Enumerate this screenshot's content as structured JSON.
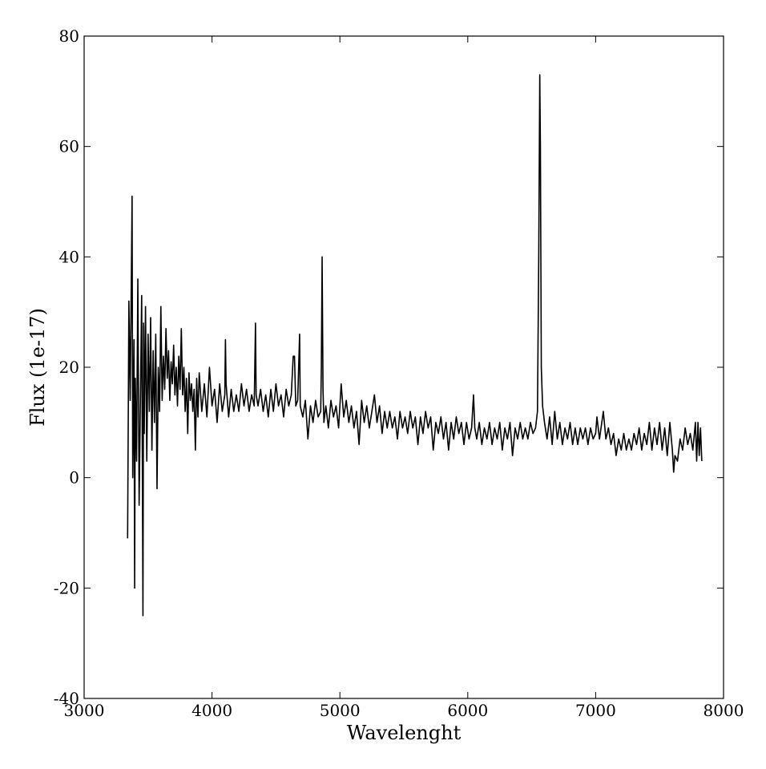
{
  "chart_data": {
    "type": "line",
    "x_label": "Wavelenght",
    "y_label": "Flux (1e-17)",
    "x": [
      3340,
      3350,
      3360,
      3370,
      3375,
      3380,
      3390,
      3395,
      3400,
      3410,
      3420,
      3430,
      3440,
      3450,
      3460,
      3465,
      3470,
      3480,
      3490,
      3500,
      3510,
      3520,
      3530,
      3540,
      3550,
      3560,
      3570,
      3580,
      3590,
      3600,
      3610,
      3620,
      3630,
      3640,
      3650,
      3660,
      3670,
      3680,
      3690,
      3700,
      3710,
      3720,
      3730,
      3740,
      3750,
      3760,
      3770,
      3780,
      3790,
      3800,
      3810,
      3820,
      3830,
      3840,
      3850,
      3860,
      3870,
      3880,
      3890,
      3900,
      3920,
      3940,
      3960,
      3980,
      4000,
      4020,
      4040,
      4060,
      4080,
      4100,
      4105,
      4110,
      4130,
      4150,
      4170,
      4190,
      4210,
      4230,
      4250,
      4270,
      4290,
      4310,
      4330,
      4340,
      4345,
      4360,
      4380,
      4400,
      4420,
      4440,
      4460,
      4480,
      4500,
      4520,
      4540,
      4560,
      4580,
      4600,
      4620,
      4635,
      4645,
      4655,
      4670,
      4685,
      4690,
      4710,
      4730,
      4750,
      4770,
      4790,
      4810,
      4830,
      4850,
      4855,
      4861,
      4868,
      4875,
      4890,
      4910,
      4930,
      4950,
      4970,
      4990,
      5010,
      5030,
      5050,
      5070,
      5090,
      5110,
      5130,
      5150,
      5170,
      5190,
      5210,
      5230,
      5250,
      5270,
      5290,
      5310,
      5330,
      5350,
      5370,
      5390,
      5410,
      5430,
      5450,
      5470,
      5490,
      5510,
      5530,
      5550,
      5570,
      5590,
      5610,
      5630,
      5650,
      5670,
      5690,
      5710,
      5730,
      5750,
      5770,
      5790,
      5810,
      5830,
      5850,
      5870,
      5890,
      5910,
      5930,
      5950,
      5970,
      5990,
      6010,
      6030,
      6045,
      6055,
      6070,
      6090,
      6110,
      6130,
      6150,
      6170,
      6190,
      6210,
      6230,
      6250,
      6270,
      6290,
      6310,
      6330,
      6350,
      6370,
      6390,
      6410,
      6430,
      6450,
      6470,
      6490,
      6510,
      6530,
      6545,
      6555,
      6563,
      6568,
      6575,
      6585,
      6600,
      6620,
      6640,
      6660,
      6680,
      6700,
      6720,
      6740,
      6760,
      6780,
      6800,
      6820,
      6840,
      6860,
      6880,
      6900,
      6920,
      6940,
      6960,
      6980,
      7000,
      7010,
      7030,
      7060,
      7080,
      7100,
      7120,
      7140,
      7160,
      7180,
      7200,
      7220,
      7240,
      7260,
      7280,
      7300,
      7320,
      7340,
      7360,
      7380,
      7400,
      7420,
      7440,
      7460,
      7480,
      7500,
      7520,
      7540,
      7560,
      7580,
      7600,
      7610,
      7620,
      7640,
      7660,
      7680,
      7700,
      7720,
      7740,
      7760,
      7780,
      7790,
      7800,
      7810,
      7820,
      7830
    ],
    "values": [
      -11,
      32,
      14,
      38,
      51,
      0,
      25,
      -20,
      18,
      3,
      36,
      -5,
      14,
      33,
      -25,
      28,
      8,
      31,
      3,
      26,
      12,
      29,
      5,
      23,
      10,
      26,
      -2,
      20,
      12,
      31,
      14,
      22,
      16,
      27,
      18,
      23,
      14,
      21,
      17,
      24,
      15,
      20,
      13,
      22,
      16,
      27,
      15,
      20,
      12,
      18,
      8,
      19,
      14,
      17,
      12,
      16,
      5,
      18,
      11,
      19,
      12,
      17,
      11,
      20,
      13,
      16,
      10,
      17,
      12,
      15,
      25,
      17,
      11,
      16,
      12,
      15,
      12,
      17,
      13,
      16,
      12,
      15,
      13,
      28,
      15,
      13,
      16,
      12,
      15,
      11,
      16,
      12,
      17,
      13,
      15,
      11,
      16,
      13,
      15,
      22,
      22,
      13,
      14,
      26,
      13,
      11,
      14,
      7,
      13,
      10,
      14,
      11,
      12,
      20,
      40,
      16,
      10,
      13,
      9,
      14,
      11,
      13,
      9,
      17,
      11,
      14,
      10,
      13,
      9,
      12,
      6,
      14,
      10,
      13,
      9,
      12,
      15,
      10,
      13,
      8,
      12,
      9,
      12,
      9,
      11,
      7,
      12,
      9,
      11,
      8,
      12,
      9,
      11,
      6,
      11,
      8,
      12,
      9,
      11,
      5,
      10,
      8,
      11,
      7,
      10,
      5,
      10,
      7,
      11,
      8,
      10,
      6,
      10,
      7,
      9,
      15,
      9,
      7,
      10,
      6,
      9,
      7,
      10,
      6,
      9,
      7,
      10,
      5,
      9,
      7,
      10,
      4,
      9,
      7,
      10,
      7,
      9,
      7,
      10,
      8,
      9,
      12,
      40,
      73,
      60,
      20,
      13,
      10,
      7,
      11,
      6,
      12,
      7,
      10,
      6,
      9,
      7,
      10,
      6,
      9,
      6,
      9,
      7,
      9,
      6,
      9,
      7,
      8,
      11,
      7,
      12,
      7,
      9,
      6,
      8,
      4,
      7,
      5,
      8,
      5,
      7,
      5,
      8,
      6,
      9,
      5,
      8,
      6,
      10,
      5,
      9,
      6,
      10,
      5,
      9,
      4,
      10,
      5,
      1,
      4,
      3,
      7,
      5,
      9,
      6,
      8,
      5,
      10,
      3,
      10,
      4,
      9,
      3
    ],
    "color": "#000000",
    "xlim": [
      3000,
      8000
    ],
    "xticks": [
      3000,
      4000,
      5000,
      6000,
      7000,
      8000
    ],
    "ylim": [
      -40,
      80
    ],
    "yticks": [
      -40,
      -20,
      0,
      20,
      40,
      60,
      80
    ]
  }
}
